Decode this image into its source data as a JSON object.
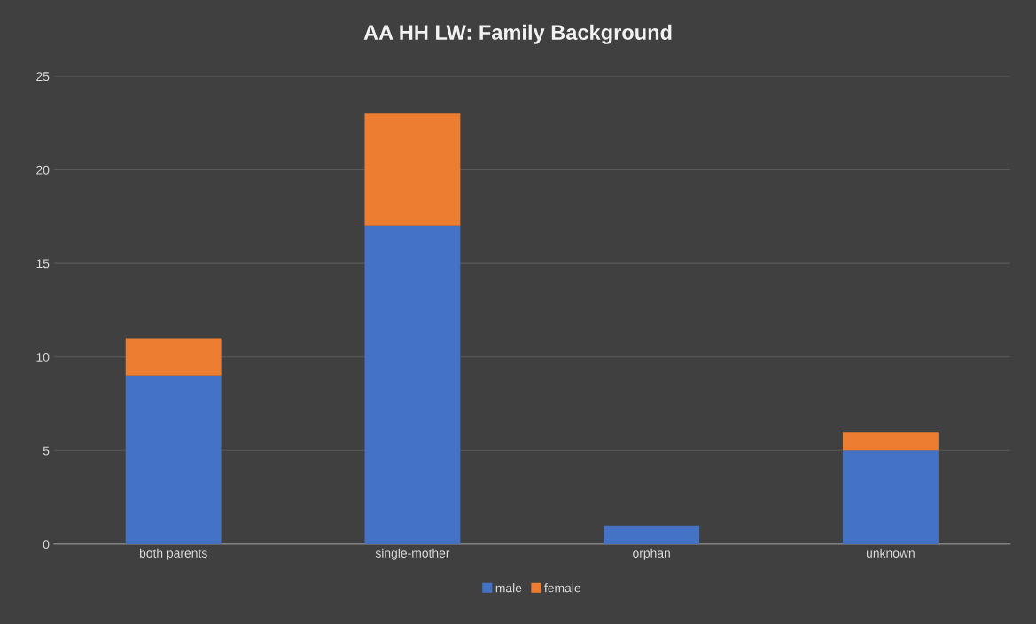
{
  "chart_data": {
    "type": "bar",
    "title": "AA HH LW: Family Background",
    "categories": [
      "both parents",
      "single-mother",
      "orphan",
      "unknown"
    ],
    "stacked": true,
    "series": [
      {
        "name": "male",
        "color": "#4472c4",
        "values": [
          9,
          17,
          1,
          5
        ]
      },
      {
        "name": "female",
        "color": "#ed7d31",
        "values": [
          2,
          6,
          0,
          1
        ]
      }
    ],
    "ylim": [
      0,
      25
    ],
    "yticks": [
      0,
      5,
      10,
      15,
      20,
      25
    ],
    "grid": "y",
    "legend": "bottom"
  }
}
